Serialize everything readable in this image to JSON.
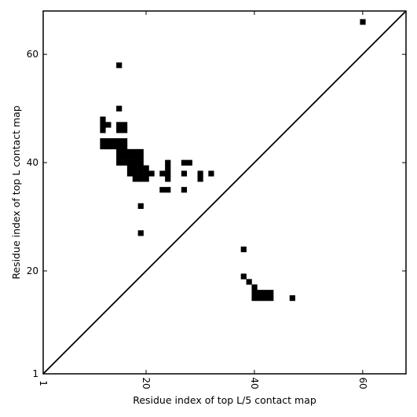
{
  "chart_data": {
    "type": "heatmap",
    "xlabel": "Residue index of top L/5 contact map",
    "ylabel": "Residue index of top L contact map",
    "xlim": [
      1,
      68
    ],
    "ylim": [
      1,
      68
    ],
    "xticks": [
      1,
      20,
      40,
      60
    ],
    "yticks": [
      1,
      20,
      40,
      60
    ],
    "x_tick_rotation": -90,
    "grid": false,
    "legend": "none",
    "diagonal_line": true,
    "cell_color": "#000000",
    "cells": [
      [
        15,
        58
      ],
      [
        60,
        66
      ],
      [
        15,
        50
      ],
      [
        12,
        46
      ],
      [
        12,
        47
      ],
      [
        12,
        48
      ],
      [
        13,
        47
      ],
      [
        15,
        46
      ],
      [
        15,
        47
      ],
      [
        16,
        46
      ],
      [
        16,
        47
      ],
      [
        12,
        43
      ],
      [
        12,
        44
      ],
      [
        13,
        43
      ],
      [
        13,
        44
      ],
      [
        14,
        43
      ],
      [
        14,
        44
      ],
      [
        15,
        43
      ],
      [
        15,
        44
      ],
      [
        16,
        43
      ],
      [
        16,
        44
      ],
      [
        15,
        40
      ],
      [
        15,
        41
      ],
      [
        15,
        42
      ],
      [
        16,
        40
      ],
      [
        16,
        41
      ],
      [
        16,
        42
      ],
      [
        17,
        38
      ],
      [
        17,
        39
      ],
      [
        17,
        40
      ],
      [
        17,
        41
      ],
      [
        17,
        42
      ],
      [
        18,
        37
      ],
      [
        18,
        38
      ],
      [
        18,
        39
      ],
      [
        18,
        40
      ],
      [
        18,
        41
      ],
      [
        18,
        42
      ],
      [
        19,
        37
      ],
      [
        19,
        38
      ],
      [
        19,
        39
      ],
      [
        19,
        40
      ],
      [
        19,
        41
      ],
      [
        19,
        42
      ],
      [
        20,
        37
      ],
      [
        20,
        38
      ],
      [
        20,
        39
      ],
      [
        21,
        38
      ],
      [
        23,
        38
      ],
      [
        24,
        37
      ],
      [
        24,
        38
      ],
      [
        24,
        39
      ],
      [
        24,
        40
      ],
      [
        27,
        38
      ],
      [
        27,
        40
      ],
      [
        28,
        40
      ],
      [
        30,
        37
      ],
      [
        30,
        38
      ],
      [
        32,
        38
      ],
      [
        23,
        35
      ],
      [
        24,
        35
      ],
      [
        27,
        35
      ],
      [
        19,
        32
      ],
      [
        19,
        27
      ],
      [
        38,
        24
      ],
      [
        38,
        19
      ],
      [
        39,
        18
      ],
      [
        40,
        17
      ],
      [
        40,
        15
      ],
      [
        40,
        16
      ],
      [
        41,
        15
      ],
      [
        41,
        16
      ],
      [
        42,
        15
      ],
      [
        42,
        16
      ],
      [
        43,
        15
      ],
      [
        43,
        16
      ],
      [
        47,
        15
      ]
    ]
  }
}
